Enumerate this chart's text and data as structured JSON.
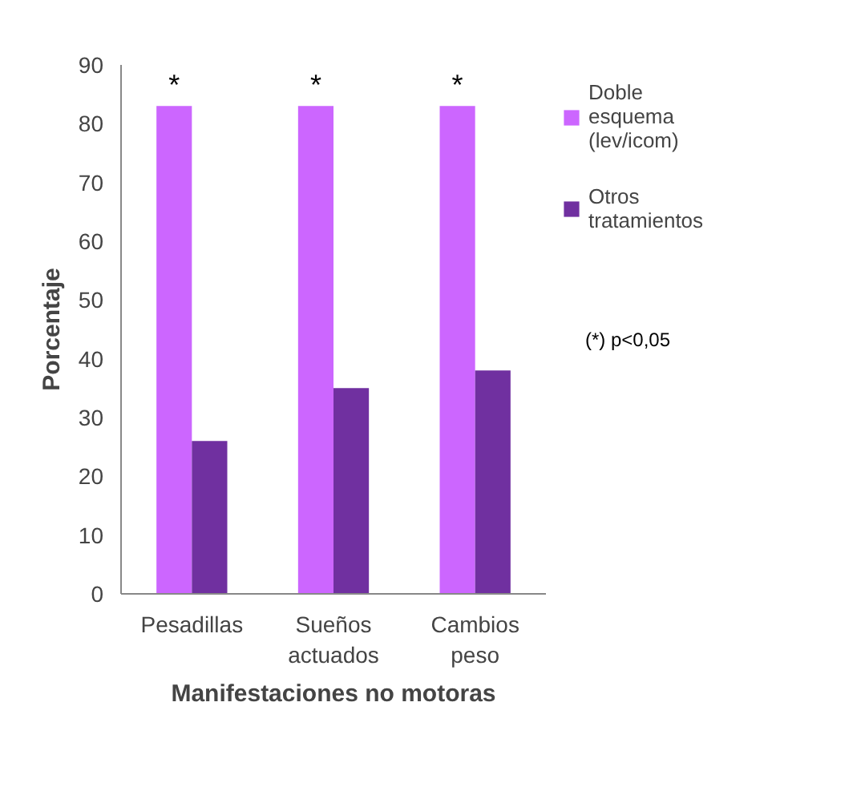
{
  "chart_data": {
    "type": "bar",
    "xlabel": "Manifestaciones no motoras",
    "ylabel": "Porcentaje",
    "categories": [
      "Pesadillas",
      "Sueños actuados",
      "Cambios peso"
    ],
    "series": [
      {
        "name": "Doble esquema (lev/icom)",
        "color": "#cc66ff",
        "values": [
          83,
          83,
          83
        ]
      },
      {
        "name": "Otros tratamientos",
        "color": "#7030a0",
        "values": [
          26,
          35,
          38
        ]
      }
    ],
    "ylim": [
      0,
      90
    ],
    "yticks": [
      0,
      10,
      20,
      30,
      40,
      50,
      60,
      70,
      80,
      90
    ],
    "grid": false,
    "legend": "right",
    "annotations": [
      "*",
      "*",
      "*",
      "(*) p<0,05"
    ]
  }
}
